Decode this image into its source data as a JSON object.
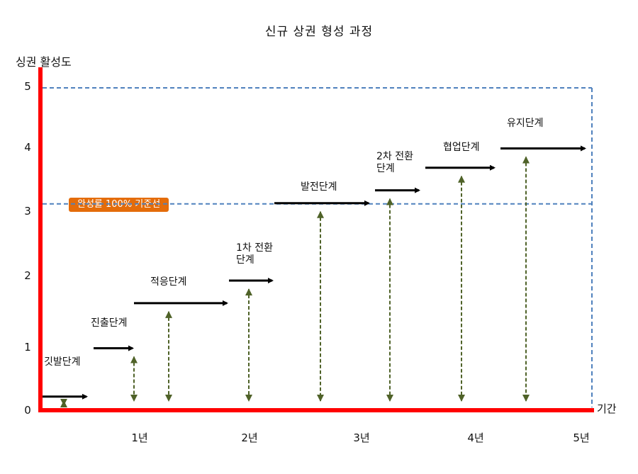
{
  "title": "신규 상권 형성 과정",
  "y_axis_label": "싱권 활성도",
  "x_axis_label": "기간",
  "y_ticks": [
    "0",
    "1",
    "2",
    "3",
    "4",
    "5"
  ],
  "x_ticks": [
    "1년",
    "2년",
    "3년",
    "4년",
    "5년"
  ],
  "baseline_label": "완성률 100% 기준선",
  "baseline_level": 3.2,
  "max_level": 5,
  "stages": [
    {
      "label": "깃발단계",
      "level": 0.2
    },
    {
      "label": "진출단계",
      "level": 0.95
    },
    {
      "label": "적응단계",
      "level": 1.65
    },
    {
      "label": "1차 전환\n단계",
      "level": 2.0
    },
    {
      "label": "발전단계",
      "level": 3.2
    },
    {
      "label": "2차 전환\n단계",
      "level": 3.4
    },
    {
      "label": "협업단계",
      "level": 3.75
    },
    {
      "label": "유지단계",
      "level": 4.05
    }
  ],
  "colors": {
    "axis": "#FF0000",
    "guide": "#4F81BD",
    "stage_arrow": "#000000",
    "level_arrow": "#4F6228",
    "badge": "#E46C0A"
  }
}
